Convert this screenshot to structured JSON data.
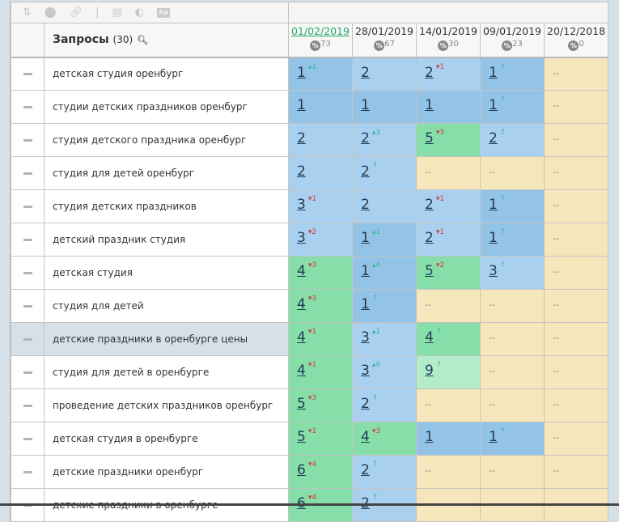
{
  "toolbar": {
    "icons": [
      "sort-icon",
      "toggle-icon",
      "link-icon",
      "separator",
      "window-icon",
      "contrast-icon",
      "font-icon"
    ]
  },
  "header": {
    "queries_label": "Запросы",
    "queries_count": "(30)",
    "dates": [
      {
        "date": "01/02/2019",
        "pct": "73",
        "active": true
      },
      {
        "date": "28/01/2019",
        "pct": "67"
      },
      {
        "date": "14/01/2019",
        "pct": "30"
      },
      {
        "date": "09/01/2019",
        "pct": "23"
      },
      {
        "date": "20/12/2018",
        "pct": "0"
      }
    ],
    "pct_symbol": "%"
  },
  "colors": {
    "pos1": "#93c4e8",
    "pos2_3": "#a9d0ee",
    "pos4_6": "#86dfa8",
    "pos7_10": "#b3ecc8",
    "empty": "#f5e6bb",
    "up": "#3cb89a",
    "down": "#d04040"
  },
  "rows": [
    {
      "q": "детская студия оренбург",
      "cells": [
        {
          "v": "1",
          "d": "▴1",
          "t": "up"
        },
        {
          "v": "2"
        },
        {
          "v": "2",
          "d": "▾1",
          "t": "down"
        },
        {
          "v": "1",
          "d": "↑",
          "t": "up"
        },
        {
          "v": "--"
        }
      ]
    },
    {
      "q": "студии детских праздников оренбург",
      "cells": [
        {
          "v": "1"
        },
        {
          "v": "1"
        },
        {
          "v": "1"
        },
        {
          "v": "1",
          "d": "↑",
          "t": "up"
        },
        {
          "v": "--"
        }
      ]
    },
    {
      "q": "студия детского праздника оренбург",
      "cells": [
        {
          "v": "2"
        },
        {
          "v": "2",
          "d": "▴3",
          "t": "up"
        },
        {
          "v": "5",
          "d": "▾3",
          "t": "down"
        },
        {
          "v": "2",
          "d": "↑",
          "t": "up"
        },
        {
          "v": "--"
        }
      ]
    },
    {
      "q": "студия для детей оренбург",
      "cells": [
        {
          "v": "2"
        },
        {
          "v": "2",
          "d": "↑",
          "t": "up"
        },
        {
          "v": "--"
        },
        {
          "v": "--"
        },
        {
          "v": "--"
        }
      ]
    },
    {
      "q": "студия детских праздников",
      "cells": [
        {
          "v": "3",
          "d": "▾1",
          "t": "down"
        },
        {
          "v": "2"
        },
        {
          "v": "2",
          "d": "▾1",
          "t": "down"
        },
        {
          "v": "1",
          "d": "↑",
          "t": "up"
        },
        {
          "v": "--"
        }
      ]
    },
    {
      "q": "детский праздник студия",
      "cells": [
        {
          "v": "3",
          "d": "▾2",
          "t": "down"
        },
        {
          "v": "1",
          "d": "▴1",
          "t": "up"
        },
        {
          "v": "2",
          "d": "▾1",
          "t": "down"
        },
        {
          "v": "1",
          "d": "↑",
          "t": "up"
        },
        {
          "v": "--"
        }
      ]
    },
    {
      "q": "детская студия",
      "cells": [
        {
          "v": "4",
          "d": "▾3",
          "t": "down"
        },
        {
          "v": "1",
          "d": "▴4",
          "t": "up"
        },
        {
          "v": "5",
          "d": "▾2",
          "t": "down"
        },
        {
          "v": "3",
          "d": "↑",
          "t": "up"
        },
        {
          "v": "--"
        }
      ]
    },
    {
      "q": "студия для детей",
      "cells": [
        {
          "v": "4",
          "d": "▾3",
          "t": "down"
        },
        {
          "v": "1",
          "d": "↑",
          "t": "up"
        },
        {
          "v": "--"
        },
        {
          "v": "--"
        },
        {
          "v": "--"
        }
      ]
    },
    {
      "q": "детские праздники в оренбурге цены",
      "selected": true,
      "cells": [
        {
          "v": "4",
          "d": "▾1",
          "t": "down"
        },
        {
          "v": "3",
          "d": "▴1",
          "t": "up"
        },
        {
          "v": "4",
          "d": "↑",
          "t": "up"
        },
        {
          "v": "--"
        },
        {
          "v": "--"
        }
      ]
    },
    {
      "q": "студия для детей в оренбурге",
      "cells": [
        {
          "v": "4",
          "d": "▾1",
          "t": "down"
        },
        {
          "v": "3",
          "d": "▴6",
          "t": "up"
        },
        {
          "v": "9",
          "d": "↑",
          "t": "up"
        },
        {
          "v": "--"
        },
        {
          "v": "--"
        }
      ]
    },
    {
      "q": "проведение детских праздников оренбург",
      "cells": [
        {
          "v": "5",
          "d": "▾3",
          "t": "down"
        },
        {
          "v": "2",
          "d": "↑",
          "t": "up"
        },
        {
          "v": "--"
        },
        {
          "v": "--"
        },
        {
          "v": "--"
        }
      ]
    },
    {
      "q": "детская студия в оренбурге",
      "cells": [
        {
          "v": "5",
          "d": "▾1",
          "t": "down"
        },
        {
          "v": "4",
          "d": "▾3",
          "t": "down"
        },
        {
          "v": "1"
        },
        {
          "v": "1",
          "d": "↑",
          "t": "up"
        },
        {
          "v": "--"
        }
      ]
    },
    {
      "q": "детские праздники оренбург",
      "cells": [
        {
          "v": "6",
          "d": "▾4",
          "t": "down"
        },
        {
          "v": "2",
          "d": "↑",
          "t": "up"
        },
        {
          "v": "--"
        },
        {
          "v": "--"
        },
        {
          "v": "--"
        }
      ]
    },
    {
      "q": "детские праздники в оренбурге",
      "cells": [
        {
          "v": "6",
          "d": "▾4",
          "t": "down"
        },
        {
          "v": "2",
          "d": "↑",
          "t": "up"
        },
        {
          "v": "--"
        },
        {
          "v": "--"
        },
        {
          "v": "--"
        }
      ]
    }
  ]
}
